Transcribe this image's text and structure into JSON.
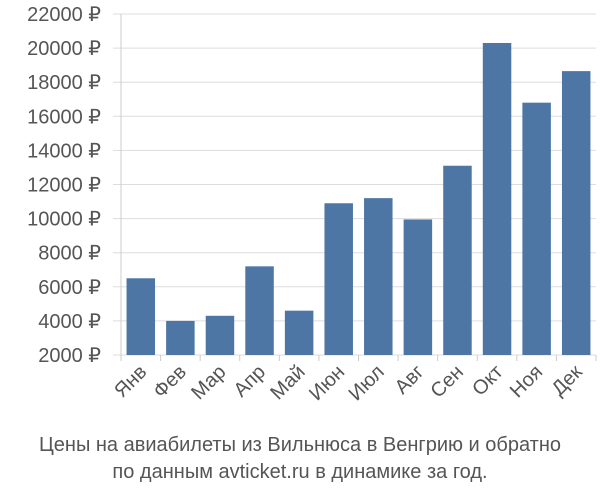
{
  "chart_data": {
    "type": "bar",
    "categories": [
      "Янв",
      "Фев",
      "Мар",
      "Апр",
      "Май",
      "Июн",
      "Июл",
      "Авг",
      "Сен",
      "Окт",
      "Ноя",
      "Дек"
    ],
    "values": [
      6500,
      4000,
      4300,
      7200,
      4600,
      10900,
      11200,
      9950,
      13100,
      20300,
      16800,
      18650
    ],
    "y_ticks": [
      2000,
      4000,
      6000,
      8000,
      10000,
      12000,
      14000,
      16000,
      18000,
      20000,
      22000
    ],
    "y_tick_suffix": " ₽",
    "ylim": [
      2000,
      22000
    ],
    "bar_color": "#4d76a5",
    "grid": true
  },
  "caption": {
    "line1": "Цены на авиабилеты из Вильнюса в Венгрию и обратно",
    "line2": "по данным avticket.ru в динамике за год."
  }
}
